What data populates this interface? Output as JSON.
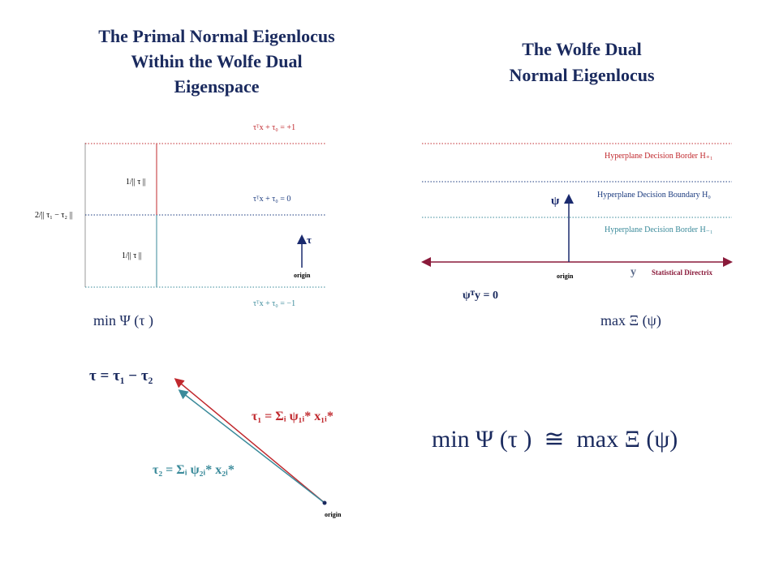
{
  "left_panel": {
    "title_lines": [
      "The Primal Normal Eigenlocus",
      "Within the Wolfe Dual",
      "Eigenspace"
    ],
    "labels": {
      "upper_plane": "τᵀx + τ₀ = +1",
      "upper_margin": "1/|| τ ||",
      "middle_plane": "τᵀx + τ₀ = 0",
      "width": "2/|| τ₁ − τ₂ ||",
      "lower_margin": "1/|| τ ||",
      "vector": "τ",
      "origin": "origin",
      "lower_plane": "τᵀx + τ₀ = −1"
    },
    "objective": "min Ψ (τ )"
  },
  "right_panel": {
    "title_lines": [
      "The Wolfe Dual",
      "Normal Eigenlocus"
    ],
    "labels": {
      "upper_border": "Hyperplane Decision Border H₊₁",
      "boundary": "Hyperplane Decision Boundary H₀",
      "lower_border": "Hyperplane Decision Border H₋₁",
      "vector": "ψ",
      "origin": "origin",
      "axis": "y",
      "directrix": "Statistical Directrix",
      "equation": "ψᵀy = 0"
    },
    "objective": "max Ξ (ψ)"
  },
  "vector_panel": {
    "difference": "τ = τ₁ − τ₂",
    "tau1": "τ₁ = Σᵢ ψ₁ᵢ* x₁ᵢ*",
    "tau2": "τ₂ = Σᵢ ψ₂ᵢ* x₂ᵢ*",
    "origin": "origin"
  },
  "equivalence": "min Ψ (τ )  ≅  max Ξ (ψ)"
}
